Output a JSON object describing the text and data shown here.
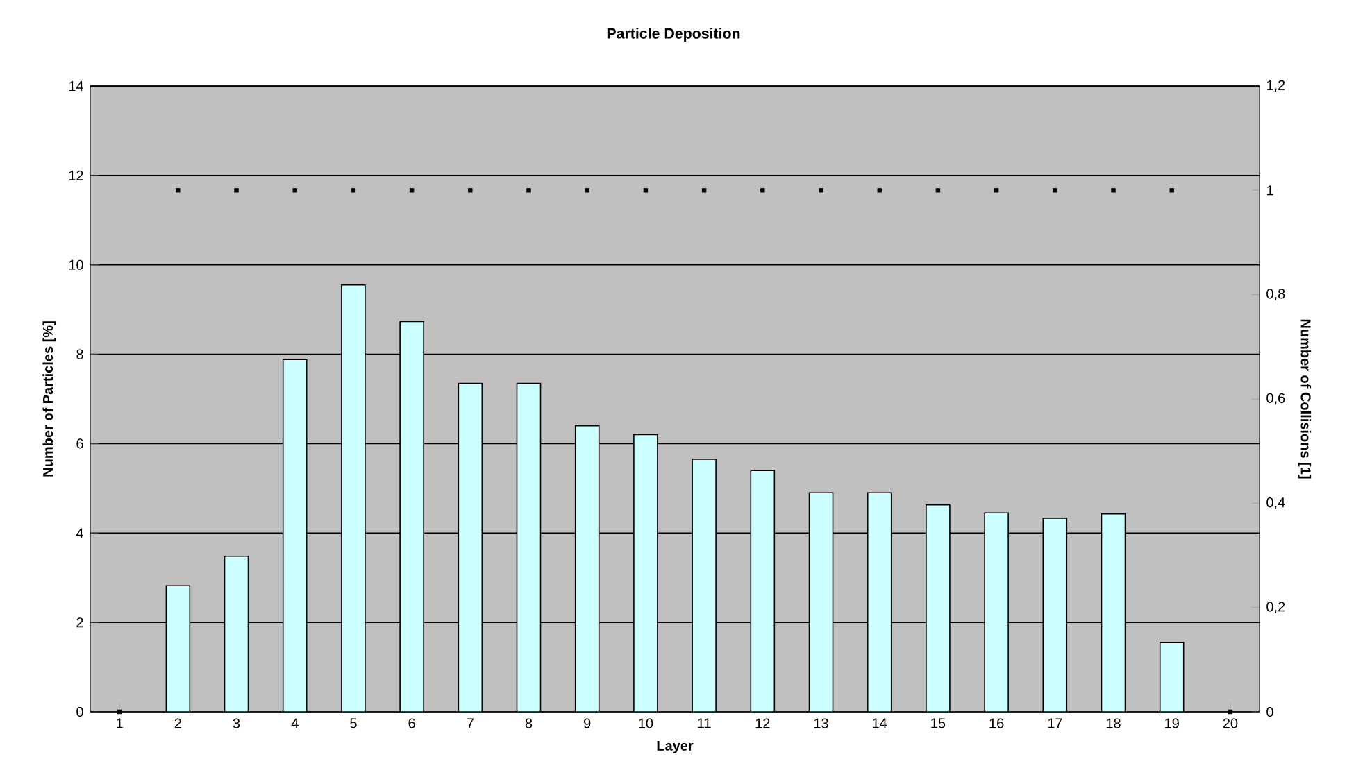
{
  "chart_data": {
    "type": "bar",
    "title": "Particle Deposition",
    "xlabel": "Layer",
    "ylabel": "Number of Particles [%]",
    "y2label": "Number of Collisions [1]",
    "categories": [
      "1",
      "2",
      "3",
      "4",
      "5",
      "6",
      "7",
      "8",
      "9",
      "10",
      "11",
      "12",
      "13",
      "14",
      "15",
      "16",
      "17",
      "18",
      "19",
      "20"
    ],
    "series": [
      {
        "color": "#ccffff",
        "values": [
          null,
          2.82,
          3.48,
          7.88,
          9.55,
          8.73,
          7.35,
          7.35,
          6.4,
          6.2,
          5.65,
          5.4,
          4.9,
          4.9,
          4.63,
          4.45,
          4.33,
          4.43,
          1.55,
          null
        ]
      },
      {
        "type": "scatter",
        "axis": "y2",
        "marker": "square",
        "color": "#000000",
        "values": [
          0,
          1,
          1,
          1,
          1,
          1,
          1,
          1,
          1,
          1,
          1,
          1,
          1,
          1,
          1,
          1,
          1,
          1,
          1,
          0
        ]
      }
    ],
    "ylim": [
      0,
      14
    ],
    "yticks": [
      0,
      2,
      4,
      6,
      8,
      10,
      12,
      14
    ],
    "y2lim": [
      0,
      1.2
    ],
    "y2ticks": [
      0,
      {
        "value": 0.2,
        "label": "0,2"
      },
      {
        "value": 0.4,
        "label": "0,4"
      },
      {
        "value": 0.6,
        "label": "0,6"
      },
      {
        "value": 0.8,
        "label": "0,8"
      },
      1,
      {
        "value": 1.2,
        "label": "1,2"
      }
    ],
    "grid": "y"
  }
}
